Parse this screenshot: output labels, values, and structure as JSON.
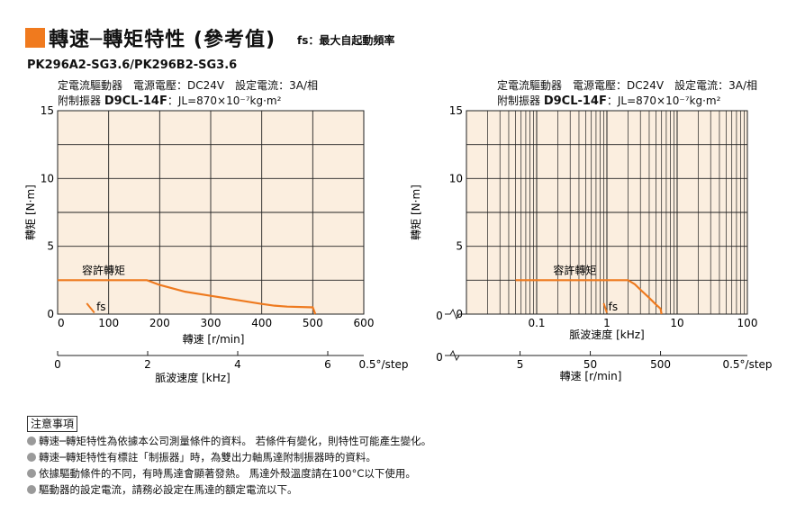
{
  "header": {
    "title": "轉速─轉矩特性 (參考值)",
    "fs_note": "fs：最大自起動頻率",
    "model": "PK296A2-SG3.6/PK296B2-SG3.6"
  },
  "conditions": {
    "line1": "定電流驅動器　電源電壓：DC24V　設定電流：3A/相",
    "driver_prefix": "附制振器 ",
    "driver_model": "D9CL-14F",
    "inertia": "：JL=870×10⁻⁷kg·m²"
  },
  "chart_data": [
    {
      "type": "line",
      "ylabel": "轉矩 [N·m]",
      "xlabel": "轉速 [r/min]",
      "x2label": "脈波速度 [kHz]",
      "x_scale": "linear",
      "xlim": [
        0,
        600
      ],
      "ylim": [
        0,
        15
      ],
      "x_ticks": [
        "0",
        "100",
        "200",
        "300",
        "400",
        "500",
        "600"
      ],
      "y_ticks": [
        "0",
        "5",
        "10",
        "15"
      ],
      "x2_ticks": [
        "0",
        "2",
        "4",
        "6"
      ],
      "x2_end_label": "0.5°/step",
      "grid": true,
      "background": "#fbeedf",
      "curve_color": "#ee7a1f",
      "series": [
        {
          "name": "容許轉矩",
          "x": [
            0,
            175,
            200,
            250,
            300,
            350,
            400,
            425,
            450,
            500,
            505
          ],
          "y": [
            2.5,
            2.5,
            2.15,
            1.65,
            1.35,
            1.05,
            0.75,
            0.62,
            0.55,
            0.5,
            0
          ]
        }
      ],
      "fs": {
        "label": "fs",
        "x": [
          57,
          72
        ],
        "y": [
          0.8,
          0.1
        ]
      }
    },
    {
      "type": "line",
      "ylabel": "轉矩 [N·m]",
      "xlabel": "脈波速度 [kHz]",
      "x2label": "轉速 [r/min]",
      "x_scale": "log",
      "xlim": [
        0.01,
        100
      ],
      "ylim": [
        0,
        15
      ],
      "x_ticks": [
        "0",
        "0.1",
        "1",
        "10",
        "100"
      ],
      "y_ticks": [
        "0",
        "5",
        "10",
        "15"
      ],
      "x2_ticks": [
        "0",
        "5",
        "50",
        "500"
      ],
      "x2_end_label": "0.5°/step",
      "grid": true,
      "background": "#fbeedf",
      "curve_color": "#ee7a1f",
      "series": [
        {
          "name": "容許轉矩",
          "x": [
            0.05,
            1.2,
            2.0,
            2.5,
            3.0,
            4.0,
            5.0,
            5.8,
            6.0
          ],
          "y": [
            2.5,
            2.5,
            2.5,
            2.2,
            1.8,
            1.2,
            0.7,
            0.4,
            0
          ]
        }
      ],
      "fs": {
        "label": "fs",
        "x": [
          0.9,
          1.0
        ],
        "y": [
          0.8,
          0.1
        ]
      }
    }
  ],
  "notes": {
    "title": "注意事項",
    "items": [
      "轉速─轉矩特性為依據本公司測量條件的資料。 若條件有變化，則特性可能產生變化。",
      "轉速─轉矩特性有標註「制振器」時，為雙出力軸馬達附制振器時的資料。",
      "依據驅動條件的不同，有時馬達會顯著發熱。 馬達外殼溫度請在100°C以下使用。",
      "驅動器的設定電流，請務必設定在馬達的額定電流以下。"
    ]
  }
}
